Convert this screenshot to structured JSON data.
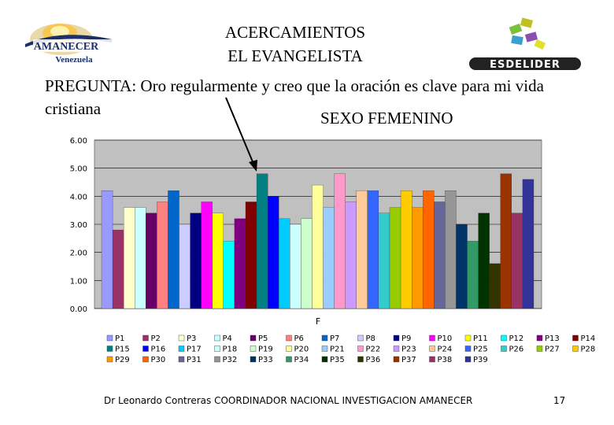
{
  "header": {
    "title_line1": "ACERCAMIENTOS",
    "title_line2": "EL EVANGELISTA",
    "logo_left_text1": "AMANECER",
    "logo_left_text2": "Venezuela",
    "logo_right_text": "ESDELIDER"
  },
  "question": "PREGUNTA: Oro regularmente y creo que la oración es clave para mi vida cristiana",
  "gender_label": "SEXO FEMENINO",
  "chart_data": {
    "type": "bar",
    "xlabel": "F",
    "ylim": [
      0,
      6
    ],
    "yticks": [
      "0.00",
      "1.00",
      "2.00",
      "3.00",
      "4.00",
      "5.00",
      "6.00"
    ],
    "grid": true,
    "legend_position": "bottom",
    "series": [
      {
        "name": "P1",
        "value": 4.2,
        "color": "#9999ff"
      },
      {
        "name": "P2",
        "value": 2.8,
        "color": "#993366"
      },
      {
        "name": "P3",
        "value": 3.6,
        "color": "#ffffcc"
      },
      {
        "name": "P4",
        "value": 3.6,
        "color": "#ccffff"
      },
      {
        "name": "P5",
        "value": 3.4,
        "color": "#660066"
      },
      {
        "name": "P6",
        "value": 3.8,
        "color": "#ff8080"
      },
      {
        "name": "P7",
        "value": 4.2,
        "color": "#0066cc"
      },
      {
        "name": "P8",
        "value": 3.0,
        "color": "#ccccff"
      },
      {
        "name": "P9",
        "value": 3.4,
        "color": "#000080"
      },
      {
        "name": "P10",
        "value": 3.8,
        "color": "#ff00ff"
      },
      {
        "name": "P11",
        "value": 3.4,
        "color": "#ffff00"
      },
      {
        "name": "P12",
        "value": 2.4,
        "color": "#00ffff"
      },
      {
        "name": "P13",
        "value": 3.2,
        "color": "#800080"
      },
      {
        "name": "P14",
        "value": 3.8,
        "color": "#800000"
      },
      {
        "name": "P15",
        "value": 4.8,
        "color": "#008080"
      },
      {
        "name": "P16",
        "value": 4.0,
        "color": "#0000ff"
      },
      {
        "name": "P17",
        "value": 3.2,
        "color": "#00ccff"
      },
      {
        "name": "P18",
        "value": 3.0,
        "color": "#ccffff"
      },
      {
        "name": "P19",
        "value": 3.2,
        "color": "#ccffcc"
      },
      {
        "name": "P20",
        "value": 4.4,
        "color": "#ffff99"
      },
      {
        "name": "P21",
        "value": 3.6,
        "color": "#99ccff"
      },
      {
        "name": "P22",
        "value": 4.8,
        "color": "#ff99cc"
      },
      {
        "name": "P23",
        "value": 3.8,
        "color": "#cc99ff"
      },
      {
        "name": "P24",
        "value": 4.2,
        "color": "#ffcc99"
      },
      {
        "name": "P25",
        "value": 4.2,
        "color": "#3366ff"
      },
      {
        "name": "P26",
        "value": 3.4,
        "color": "#33cccc"
      },
      {
        "name": "P27",
        "value": 3.6,
        "color": "#99cc00"
      },
      {
        "name": "P28",
        "value": 4.2,
        "color": "#ffcc00"
      },
      {
        "name": "P29",
        "value": 3.6,
        "color": "#ff9900"
      },
      {
        "name": "P30",
        "value": 4.2,
        "color": "#ff6600"
      },
      {
        "name": "P31",
        "value": 3.8,
        "color": "#666699"
      },
      {
        "name": "P32",
        "value": 4.2,
        "color": "#969696"
      },
      {
        "name": "P33",
        "value": 3.0,
        "color": "#003366"
      },
      {
        "name": "P34",
        "value": 2.4,
        "color": "#339966"
      },
      {
        "name": "P35",
        "value": 3.4,
        "color": "#003300"
      },
      {
        "name": "P36",
        "value": 1.6,
        "color": "#333300"
      },
      {
        "name": "P37",
        "value": 4.8,
        "color": "#993300"
      },
      {
        "name": "P38",
        "value": 3.4,
        "color": "#993366"
      },
      {
        "name": "P39",
        "value": 4.6,
        "color": "#333399"
      }
    ]
  },
  "footer": "Dr Leonardo Contreras   COORDINADOR NACIONAL INVESTIGACION AMANECER",
  "page_number": "17"
}
